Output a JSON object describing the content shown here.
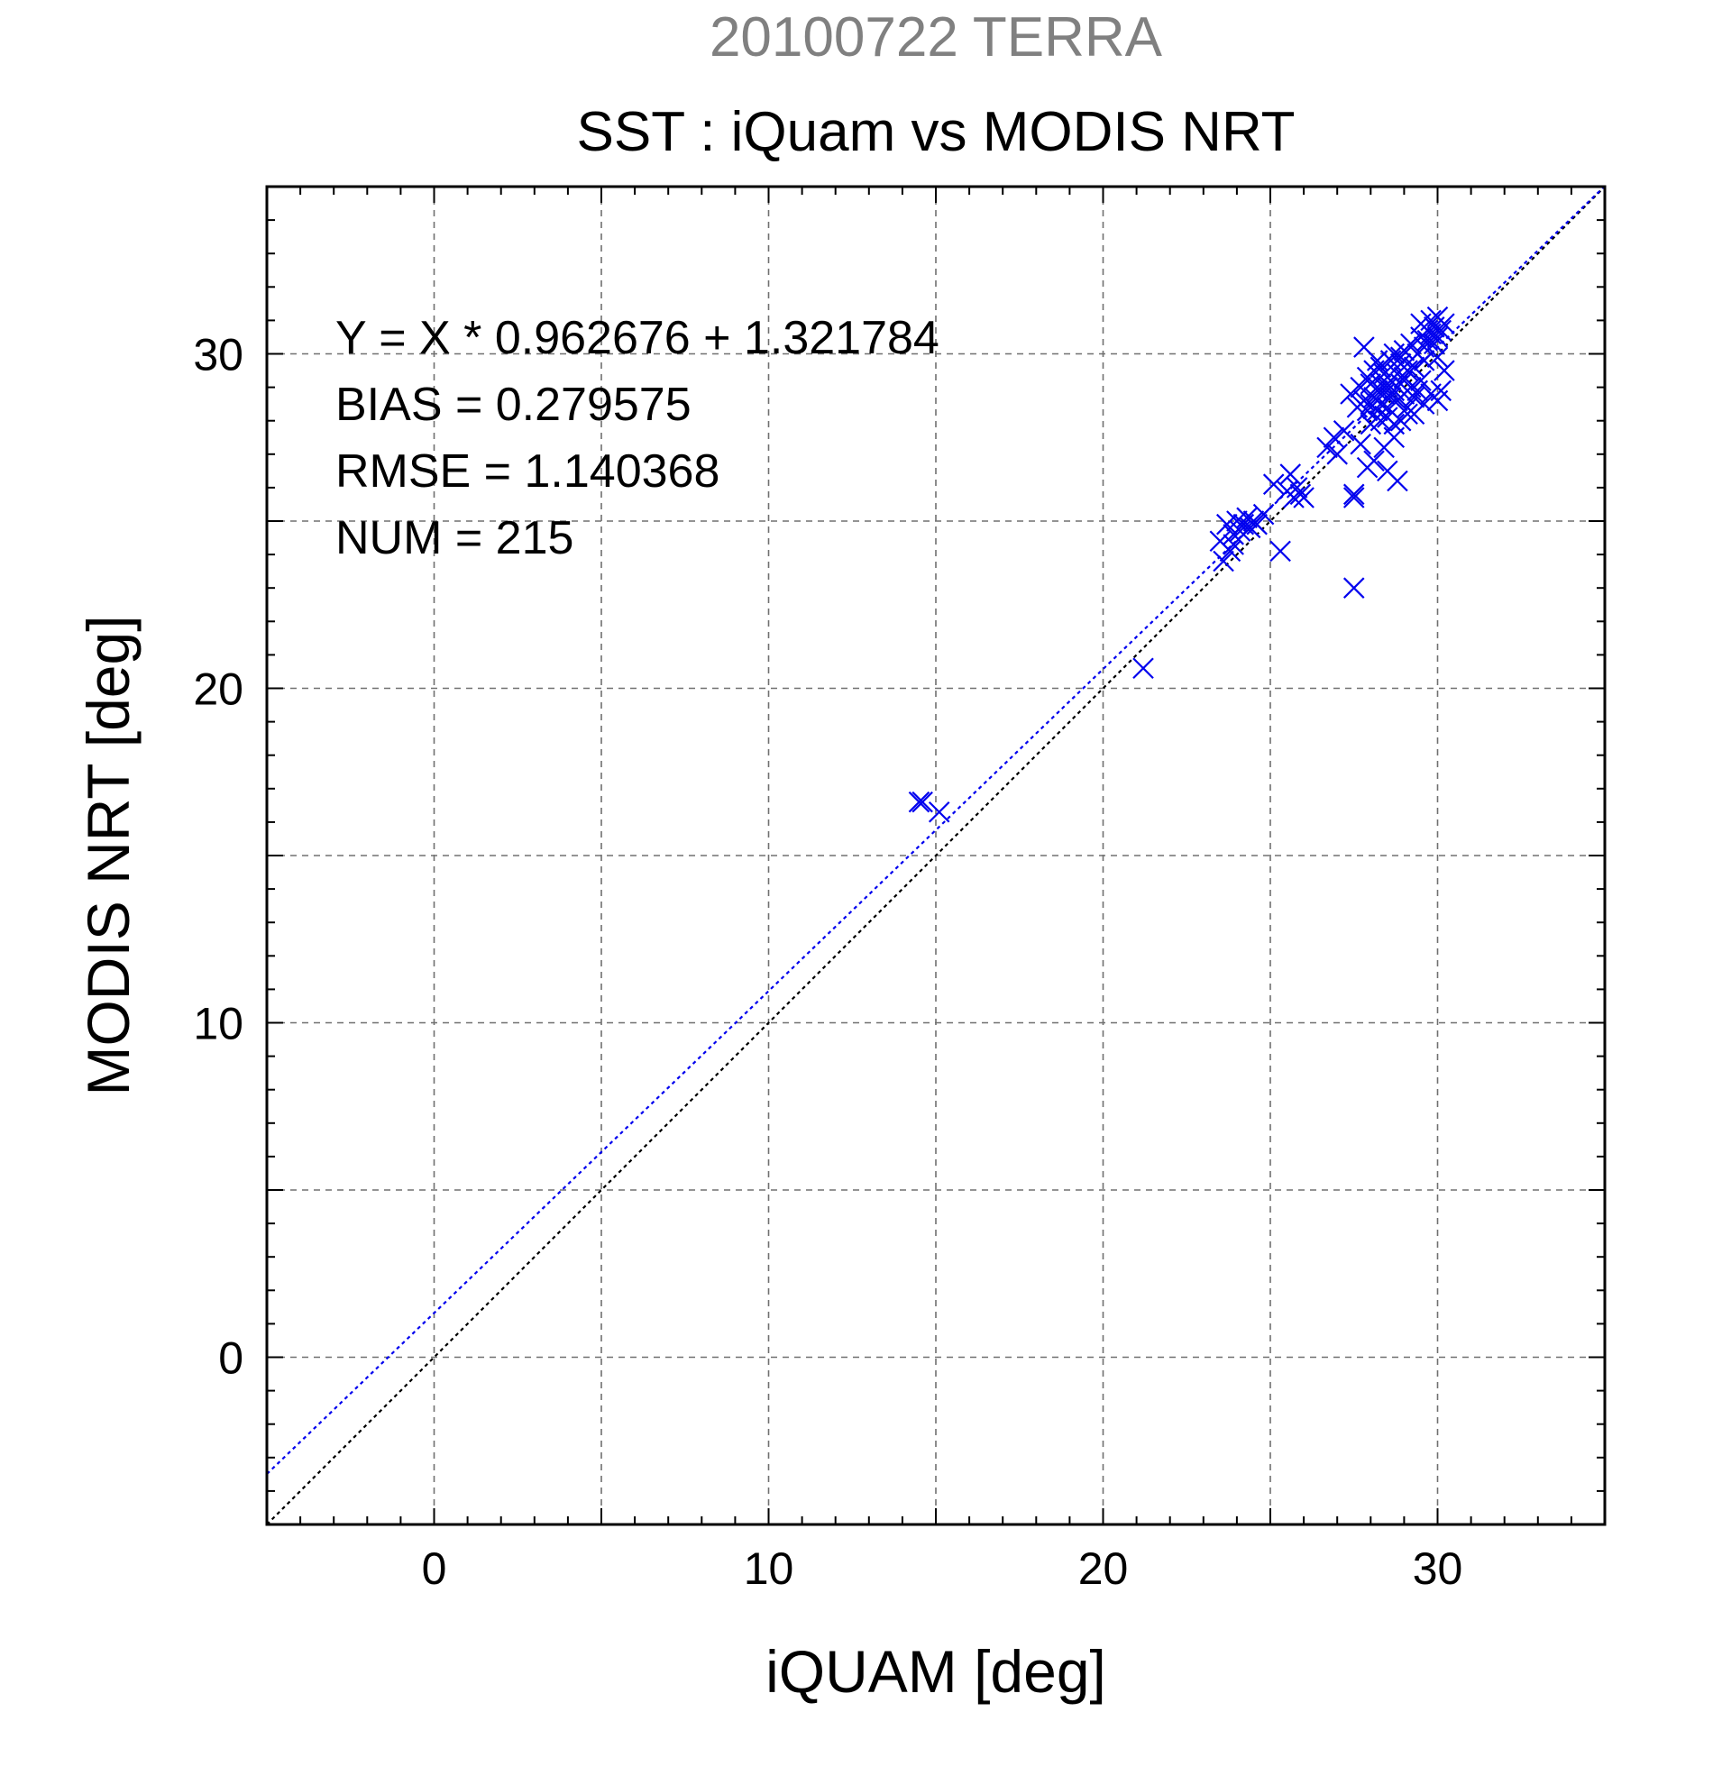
{
  "chart_data": {
    "type": "scatter",
    "date_title": "20100722 TERRA",
    "title": "SST : iQuam vs MODIS NRT",
    "xlabel": "iQUAM [deg]",
    "ylabel": "MODIS NRT [deg]",
    "xlim": [
      -5,
      35
    ],
    "ylim": [
      -5,
      35
    ],
    "xticks": [
      0,
      10,
      20,
      30
    ],
    "yticks": [
      0,
      10,
      20,
      30
    ],
    "grid": true,
    "fit_line": {
      "slope": 0.962676,
      "intercept": 1.321784,
      "color": "#0000ee"
    },
    "identity_line": {
      "slope": 1,
      "intercept": 0,
      "color": "#000000"
    },
    "stats": [
      "Y = X * 0.962676 + 1.321784",
      "BIAS = 0.279575",
      "RMSE = 1.140368",
      "NUM = 215"
    ],
    "colors": {
      "points": "#0000ee",
      "date_title": "#808080",
      "grid": "#707070"
    },
    "series": [
      {
        "x": [
          14.5,
          14.6,
          15.1,
          21.2,
          23.5,
          23.6,
          23.7,
          23.8,
          23.9,
          23.9,
          24.0,
          24.1,
          24.2,
          24.3,
          24.4,
          24.5,
          24.6,
          24.8,
          25.1,
          25.3,
          25.5,
          25.6,
          25.7,
          25.8,
          25.9,
          26.0,
          26.7,
          26.9,
          27.0,
          27.2,
          27.4,
          27.5,
          27.5,
          27.5,
          27.6,
          27.7,
          27.7,
          27.8,
          27.8,
          27.9,
          27.9,
          28.0,
          28.0,
          28.0,
          28.1,
          28.1,
          28.1,
          28.2,
          28.2,
          28.2,
          28.3,
          28.3,
          28.3,
          28.4,
          28.4,
          28.4,
          28.5,
          28.5,
          28.5,
          28.6,
          28.6,
          28.6,
          28.7,
          28.7,
          28.7,
          28.8,
          28.8,
          28.8,
          28.9,
          28.9,
          28.9,
          29.0,
          29.0,
          29.0,
          29.1,
          29.1,
          29.2,
          29.2,
          29.3,
          29.3,
          29.4,
          29.4,
          29.5,
          29.5,
          29.5,
          29.6,
          29.6,
          29.7,
          29.7,
          29.8,
          29.8,
          29.9,
          29.9,
          30.0,
          30.0,
          30.0,
          30.1,
          30.1,
          30.2,
          30.2,
          29.6,
          29.8,
          30.0,
          28.5,
          28.7,
          28.3,
          27.9,
          29.1,
          29.3,
          28.9
        ],
        "y": [
          16.6,
          16.6,
          16.3,
          20.6,
          24.4,
          23.8,
          24.9,
          24.1,
          24.6,
          24.3,
          25.0,
          24.7,
          24.9,
          25.1,
          24.8,
          25.0,
          24.9,
          25.2,
          26.1,
          24.1,
          25.9,
          26.4,
          25.7,
          26.0,
          25.8,
          25.7,
          27.2,
          27.5,
          27.0,
          27.7,
          28.8,
          25.7,
          23.0,
          25.8,
          28.4,
          27.3,
          29.0,
          30.2,
          28.6,
          26.6,
          29.3,
          28.5,
          27.9,
          29.1,
          28.7,
          29.5,
          26.8,
          28.9,
          29.8,
          28.3,
          29.1,
          28.5,
          29.6,
          28.8,
          27.2,
          29.4,
          29.0,
          28.4,
          26.5,
          29.2,
          28.7,
          29.8,
          27.5,
          28.9,
          30.0,
          28.6,
          29.4,
          26.2,
          29.1,
          28.0,
          29.7,
          29.3,
          28.8,
          30.1,
          28.2,
          29.5,
          29.0,
          30.3,
          28.7,
          29.6,
          30.0,
          28.9,
          30.5,
          29.2,
          30.9,
          30.2,
          29.8,
          30.7,
          30.4,
          31.0,
          30.6,
          30.8,
          30.3,
          31.1,
          29.9,
          30.5,
          28.9,
          30.7,
          29.5,
          30.9,
          28.5,
          28.8,
          28.6,
          28.1,
          27.9,
          28.0,
          28.3,
          28.4,
          28.2,
          29.9
        ]
      }
    ]
  }
}
